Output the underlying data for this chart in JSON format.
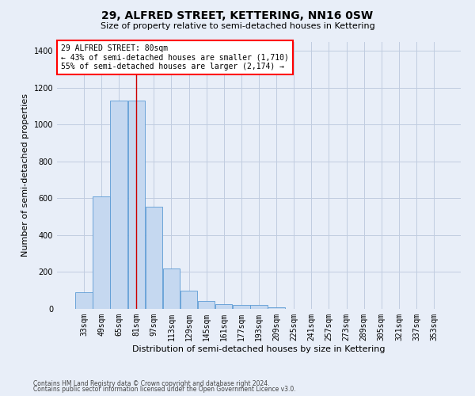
{
  "title": "29, ALFRED STREET, KETTERING, NN16 0SW",
  "subtitle": "Size of property relative to semi-detached houses in Kettering",
  "xlabel": "Distribution of semi-detached houses by size in Kettering",
  "ylabel": "Number of semi-detached properties",
  "footnote1": "Contains HM Land Registry data © Crown copyright and database right 2024.",
  "footnote2": "Contains public sector information licensed under the Open Government Licence v3.0.",
  "annotation_line1": "29 ALFRED STREET: 80sqm",
  "annotation_line2": "← 43% of semi-detached houses are smaller (1,710)",
  "annotation_line3": "55% of semi-detached houses are larger (2,174) →",
  "property_size": 80,
  "bar_width": 15.5,
  "categories": [
    33,
    49,
    65,
    81,
    97,
    113,
    129,
    145,
    161,
    177,
    193,
    209,
    225,
    241,
    257,
    273,
    289,
    305,
    321,
    337,
    353
  ],
  "values": [
    90,
    610,
    1130,
    1130,
    555,
    220,
    100,
    45,
    25,
    20,
    20,
    10,
    0,
    0,
    0,
    0,
    0,
    0,
    0,
    0,
    0
  ],
  "bar_color": "#c5d8f0",
  "bar_edge_color": "#5b9bd5",
  "vline_color": "#cc0000",
  "vline_x": 81,
  "annotation_box_edgecolor": "red",
  "grid_color": "#c0cce0",
  "background_color": "#e8eef8",
  "ylim": [
    0,
    1450
  ],
  "yticks": [
    0,
    200,
    400,
    600,
    800,
    1000,
    1200,
    1400
  ],
  "title_fontsize": 10,
  "subtitle_fontsize": 8,
  "ylabel_fontsize": 8,
  "xlabel_fontsize": 8,
  "tick_fontsize": 7,
  "footnote_fontsize": 5.5
}
